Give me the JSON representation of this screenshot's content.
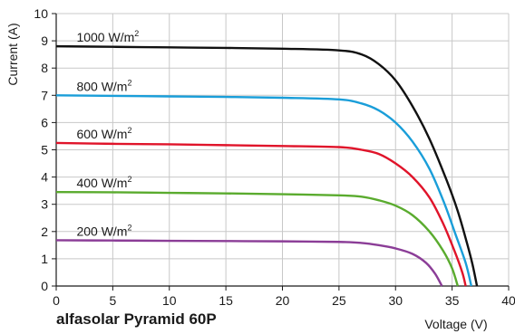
{
  "brand_label": "alfasolar Pyramid 60P",
  "chart_data": {
    "type": "line",
    "title": "",
    "xlabel": "Voltage (V)",
    "ylabel": "Current (A)",
    "xlim": [
      0,
      40
    ],
    "ylim": [
      0,
      10
    ],
    "xticks": [
      0,
      5,
      10,
      15,
      20,
      25,
      30,
      35,
      40
    ],
    "yticks": [
      0,
      1,
      2,
      3,
      4,
      5,
      6,
      7,
      8,
      9,
      10
    ],
    "grid": true,
    "series": [
      {
        "name": "1000 W/m2",
        "label_main": "1000 W/m",
        "label_sup": "2",
        "color": "#111111",
        "points": [
          [
            0,
            8.8
          ],
          [
            5,
            8.78
          ],
          [
            10,
            8.76
          ],
          [
            15,
            8.74
          ],
          [
            20,
            8.71
          ],
          [
            25,
            8.65
          ],
          [
            27,
            8.5
          ],
          [
            28.5,
            8.15
          ],
          [
            30,
            7.55
          ],
          [
            31.5,
            6.6
          ],
          [
            33,
            5.4
          ],
          [
            34.5,
            3.9
          ],
          [
            35.5,
            2.75
          ],
          [
            36.3,
            1.6
          ],
          [
            36.8,
            0.8
          ],
          [
            37.2,
            0
          ]
        ]
      },
      {
        "name": "800 W/m2",
        "label_main": "800 W/m",
        "label_sup": "2",
        "color": "#1a9ed9",
        "points": [
          [
            0,
            7.0
          ],
          [
            5,
            6.98
          ],
          [
            10,
            6.96
          ],
          [
            15,
            6.94
          ],
          [
            20,
            6.91
          ],
          [
            25,
            6.85
          ],
          [
            27,
            6.7
          ],
          [
            28.5,
            6.45
          ],
          [
            30,
            6.0
          ],
          [
            31.5,
            5.3
          ],
          [
            33,
            4.3
          ],
          [
            34.3,
            3.05
          ],
          [
            35.3,
            1.9
          ],
          [
            36.2,
            0.85
          ],
          [
            36.7,
            0
          ]
        ]
      },
      {
        "name": "600 W/m2",
        "label_main": "600 W/m",
        "label_sup": "2",
        "color": "#e0142a",
        "points": [
          [
            0,
            5.25
          ],
          [
            5,
            5.22
          ],
          [
            10,
            5.2
          ],
          [
            15,
            5.17
          ],
          [
            20,
            5.14
          ],
          [
            25,
            5.1
          ],
          [
            27,
            5.0
          ],
          [
            28.5,
            4.85
          ],
          [
            30,
            4.5
          ],
          [
            31.5,
            4.0
          ],
          [
            33,
            3.25
          ],
          [
            34.2,
            2.3
          ],
          [
            35.2,
            1.3
          ],
          [
            35.9,
            0.5
          ],
          [
            36.2,
            0
          ]
        ]
      },
      {
        "name": "400 W/m2",
        "label_main": "400 W/m",
        "label_sup": "2",
        "color": "#5aab2e",
        "points": [
          [
            0,
            3.45
          ],
          [
            5,
            3.44
          ],
          [
            10,
            3.42
          ],
          [
            15,
            3.4
          ],
          [
            20,
            3.37
          ],
          [
            25,
            3.33
          ],
          [
            27,
            3.28
          ],
          [
            28.5,
            3.15
          ],
          [
            30,
            2.95
          ],
          [
            31.5,
            2.6
          ],
          [
            33,
            2.0
          ],
          [
            34.2,
            1.3
          ],
          [
            35,
            0.65
          ],
          [
            35.5,
            0
          ]
        ]
      },
      {
        "name": "200 W/m2",
        "label_main": "200 W/m",
        "label_sup": "2",
        "color": "#8b3d97",
        "points": [
          [
            0,
            1.68
          ],
          [
            5,
            1.67
          ],
          [
            10,
            1.66
          ],
          [
            15,
            1.65
          ],
          [
            20,
            1.64
          ],
          [
            25,
            1.62
          ],
          [
            27,
            1.58
          ],
          [
            28.5,
            1.5
          ],
          [
            30,
            1.38
          ],
          [
            31.5,
            1.18
          ],
          [
            32.7,
            0.85
          ],
          [
            33.5,
            0.45
          ],
          [
            34.1,
            0
          ]
        ]
      }
    ]
  }
}
